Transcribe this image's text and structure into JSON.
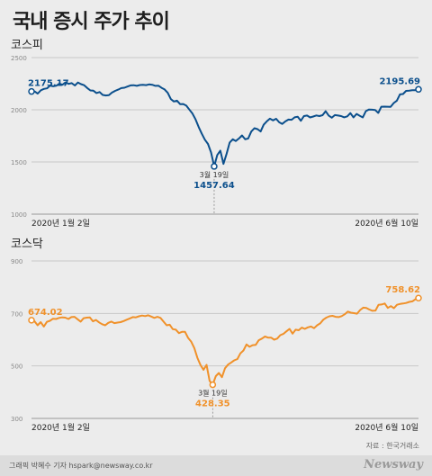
{
  "page": {
    "title": "국내 증시 주가 추이"
  },
  "footer": {
    "credit": "그래픽 박혜수 기자 hspark@newsway.co.kr",
    "source": "자료 : 한국거래소",
    "brand": "Newsway"
  },
  "colors": {
    "kospi": "#0b4f8c",
    "kosdaq": "#f0912a",
    "grid": "#c8c8c8",
    "axis": "#999999"
  },
  "chart_data": [
    {
      "type": "line",
      "title": "코스피",
      "xlabel": "",
      "ylabel": "",
      "ylim": [
        1000,
        2500
      ],
      "yticks": [
        "2500",
        "2000",
        "1500",
        "1000"
      ],
      "x_start_label": "2020년 1월 2일",
      "x_end_label": "2020년 6월 10일",
      "grid": true,
      "annotations": {
        "start": "2175.17",
        "end": "2195.69",
        "low_date": "3월 19일",
        "low": "1457.64"
      },
      "values": [
        2175.17,
        2176,
        2155,
        2186,
        2200,
        2205,
        2232,
        2225,
        2230,
        2250,
        2240,
        2262,
        2248,
        2255,
        2233,
        2261,
        2246,
        2235,
        2209,
        2185,
        2183,
        2160,
        2170,
        2142,
        2137,
        2140,
        2165,
        2181,
        2193,
        2208,
        2211,
        2222,
        2234,
        2235,
        2229,
        2237,
        2239,
        2236,
        2243,
        2240,
        2229,
        2231,
        2210,
        2195,
        2162,
        2103,
        2079,
        2087,
        2054,
        2055,
        2040,
        2002,
        1963,
        1908,
        1834,
        1771,
        1714,
        1672,
        1591,
        1457.64,
        1566,
        1609,
        1482,
        1576,
        1686,
        1717,
        1701,
        1725,
        1754,
        1717,
        1725,
        1791,
        1823,
        1815,
        1792,
        1857,
        1889,
        1915,
        1898,
        1914,
        1880,
        1865,
        1889,
        1906,
        1904,
        1928,
        1934,
        1895,
        1940,
        1945,
        1927,
        1935,
        1946,
        1940,
        1948,
        1986,
        1945,
        1924,
        1949,
        1945,
        1940,
        1928,
        1937,
        1968,
        1927,
        1960,
        1943,
        1927,
        1987,
        2003,
        2001,
        1998,
        1970,
        2029,
        2030,
        2029,
        2028,
        2065,
        2087,
        2147,
        2151,
        2181,
        2184,
        2187,
        2188,
        2195.69
      ]
    },
    {
      "type": "line",
      "title": "코스닥",
      "xlabel": "",
      "ylabel": "",
      "ylim": [
        300,
        900
      ],
      "yticks": [
        "900",
        "700",
        "500",
        "300"
      ],
      "x_start_label": "2020년 1월 2일",
      "x_end_label": "2020년 6월 10일",
      "grid": true,
      "annotations": {
        "start": "674.02",
        "end": "758.62",
        "low_date": "3월 19일",
        "low": "428.35"
      },
      "values": [
        674.02,
        670,
        655,
        667,
        650,
        668,
        672,
        680,
        679,
        683,
        685,
        684,
        679,
        686,
        687,
        678,
        669,
        682,
        684,
        685,
        670,
        675,
        666,
        659,
        655,
        664,
        669,
        663,
        665,
        667,
        671,
        676,
        681,
        686,
        685,
        689,
        692,
        690,
        693,
        688,
        683,
        687,
        683,
        669,
        655,
        657,
        640,
        638,
        625,
        630,
        630,
        607,
        592,
        568,
        531,
        504,
        485,
        504,
        443,
        428.35,
        461,
        473,
        457,
        491,
        505,
        513,
        521,
        526,
        548,
        559,
        582,
        573,
        579,
        580,
        598,
        604,
        612,
        608,
        608,
        600,
        604,
        617,
        622,
        632,
        641,
        623,
        638,
        636,
        646,
        641,
        647,
        650,
        644,
        655,
        662,
        676,
        684,
        689,
        691,
        687,
        686,
        690,
        697,
        707,
        703,
        701,
        699,
        713,
        722,
        721,
        715,
        710,
        711,
        733,
        734,
        738,
        721,
        728,
        720,
        733,
        736,
        738,
        740,
        744,
        746,
        754,
        758.62
      ]
    }
  ]
}
